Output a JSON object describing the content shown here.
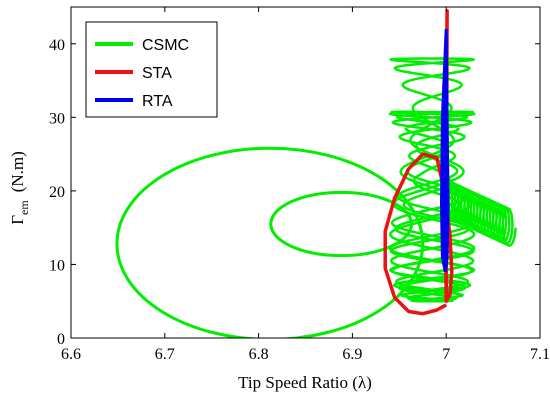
{
  "chart_data": {
    "type": "line",
    "xlabel": "Tip Speed Ratio (λ)",
    "ylabel_main": "Γ",
    "ylabel_sub": "em",
    "ylabel_unit": "(N.m)",
    "xlim": [
      6.6,
      7.1
    ],
    "ylim": [
      0,
      45
    ],
    "xticks": [
      6.6,
      6.7,
      6.8,
      6.9,
      7,
      7.1
    ],
    "xtick_labels": [
      "6.6",
      "6.7",
      "6.8",
      "6.9",
      "7",
      "7.1"
    ],
    "yticks": [
      0,
      10,
      20,
      30,
      40
    ],
    "ytick_labels": [
      "0",
      "10",
      "20",
      "30",
      "40"
    ],
    "grid": false,
    "legend_position": "top-left",
    "series": [
      {
        "name": "CSMC",
        "color": "#00ee00",
        "loops": [
          {
            "cx": 6.812,
            "cy": 12.8,
            "rx": 0.163,
            "ry": 13.0
          },
          {
            "cx": 6.888,
            "cy": 15.5,
            "rx": 0.075,
            "ry": 4.3
          }
        ],
        "coil": {
          "center_x": 6.985,
          "center_y": 17,
          "width": 0.09,
          "ymin": 5,
          "ymax": 38
        }
      },
      {
        "name": "STA",
        "color": "#ee1111",
        "x": [
          7.0,
          6.99,
          6.975,
          6.96,
          6.945,
          6.935,
          6.935,
          6.945,
          6.96,
          6.975,
          6.99,
          6.998,
          7.004,
          7.006,
          7.004,
          7.0,
          6.999,
          7.0,
          7.001,
          7.0
        ],
        "y": [
          4.5,
          3.8,
          3.3,
          3.6,
          5.5,
          9.5,
          14.5,
          19.0,
          23.0,
          25.0,
          24.5,
          20.0,
          14.0,
          9.0,
          6.0,
          5.0,
          20.0,
          35.0,
          44.5,
          5.0
        ]
      },
      {
        "name": "RTA",
        "color": "#0000ee",
        "x": [
          7.0,
          6.996,
          6.995,
          6.996,
          6.999,
          7.001,
          7.002,
          7.001,
          7.0
        ],
        "y": [
          42.0,
          30.0,
          18.0,
          11.0,
          9.0,
          11.0,
          18.0,
          30.0,
          42.0
        ]
      }
    ]
  }
}
